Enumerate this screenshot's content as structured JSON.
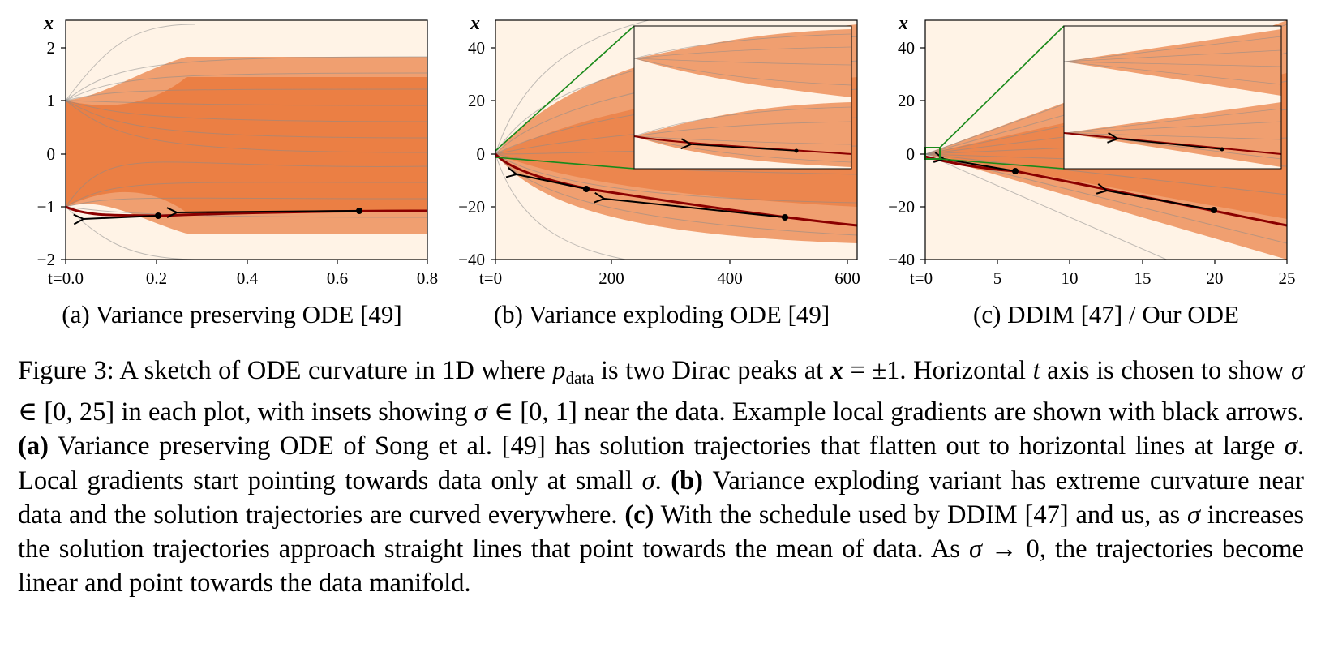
{
  "chart_data": [
    {
      "type": "line",
      "panel": "a",
      "subcaption": "(a) Variance preserving ODE [49]",
      "ylabel": "x",
      "x_start_label": "t=0.0",
      "x_ticks": [
        "0.2",
        "0.4",
        "0.6",
        "0.8"
      ],
      "xlim": [
        0.0,
        0.8
      ],
      "y_ticks": [
        "2",
        "1",
        "0",
        "−1",
        "−2"
      ],
      "ylim": [
        -2,
        2.5
      ],
      "highlight_trajectory": {
        "x": [
          0.0,
          0.05,
          0.2,
          0.4,
          0.64,
          0.8
        ],
        "y": [
          -1.0,
          -1.2,
          -1.15,
          -1.11,
          -1.09,
          -1.08
        ]
      },
      "example_points": [
        {
          "x": 0.2,
          "y": -1.15
        },
        {
          "x": 0.64,
          "y": -1.09
        }
      ],
      "inset": false
    },
    {
      "type": "line",
      "panel": "b",
      "subcaption": "(b) Variance exploding ODE [49]",
      "ylabel": "x",
      "x_start_label": "t=0",
      "x_ticks": [
        "200",
        "400",
        "600"
      ],
      "xlim": [
        0,
        625
      ],
      "y_ticks": [
        "40",
        "20",
        "0",
        "−20",
        "−40"
      ],
      "ylim": [
        -40,
        50
      ],
      "highlight_trajectory": {
        "x": [
          0,
          50,
          156,
          300,
          500,
          625
        ],
        "y": [
          -1,
          -8,
          -13.5,
          -18,
          -24,
          -27
        ]
      },
      "example_points": [
        {
          "x": 156,
          "y": -13.5
        },
        {
          "x": 500,
          "y": -24
        }
      ],
      "inset": true
    },
    {
      "type": "line",
      "panel": "c",
      "subcaption": "(c) DDIM [47] / Our ODE",
      "ylabel": "x",
      "x_start_label": "t=0",
      "x_ticks": [
        "5",
        "10",
        "15",
        "20",
        "25"
      ],
      "xlim": [
        0,
        25
      ],
      "y_ticks": [
        "40",
        "20",
        "0",
        "−20",
        "−40"
      ],
      "ylim": [
        -40,
        50
      ],
      "highlight_trajectory": {
        "x": [
          0,
          1.5,
          6.3,
          13,
          20,
          25
        ],
        "y": [
          -1,
          -2.5,
          -6.8,
          -14.2,
          -21.5,
          -26.8
        ]
      },
      "example_points": [
        {
          "x": 6.3,
          "y": -6.8
        },
        {
          "x": 20,
          "y": -21.5
        }
      ],
      "inset": true
    }
  ],
  "caption": {
    "s1": "Figure 3: A sketch of ODE curvature in 1D where ",
    "p": "p",
    "p_sub": "data",
    "s2": " is two Dirac peaks at ",
    "x": "x",
    "s3": " = ±1. Horizontal ",
    "t": "t",
    "s4": " axis is chosen to show ",
    "sigma1": "σ",
    "s5": " ∈ [0, 25] in each plot, with insets showing ",
    "sigma2": "σ",
    "s6": " ∈ [0, 1] near the data. Example local gradients are shown with black arrows. ",
    "a_label": "(a)",
    "s7": " Variance preserving ODE of Song et al. [49] has solution trajectories that flatten out to horizontal lines at large ",
    "sigma3": "σ",
    "s8": ". Local gradients start pointing towards data only at small ",
    "sigma4": "σ",
    "s9": ". ",
    "b_label": "(b)",
    "s10": " Variance exploding variant has extreme curvature near data and the solution trajectories are curved everywhere. ",
    "c_label": "(c)",
    "s11": " With the schedule used by DDIM [47] and us, as ",
    "sigma5": "σ",
    "s12": " increases the solution trajectories approach straight lines that point towards the mean of data. As ",
    "sigma6": "σ",
    "s13": " → 0, the trajectories become linear and point towards the data manifold."
  },
  "colors": {
    "density_high": "#e4590f",
    "density_low": "#fff3e6",
    "highlight": "#8b0000",
    "inset_link": "#1a8a1a"
  }
}
